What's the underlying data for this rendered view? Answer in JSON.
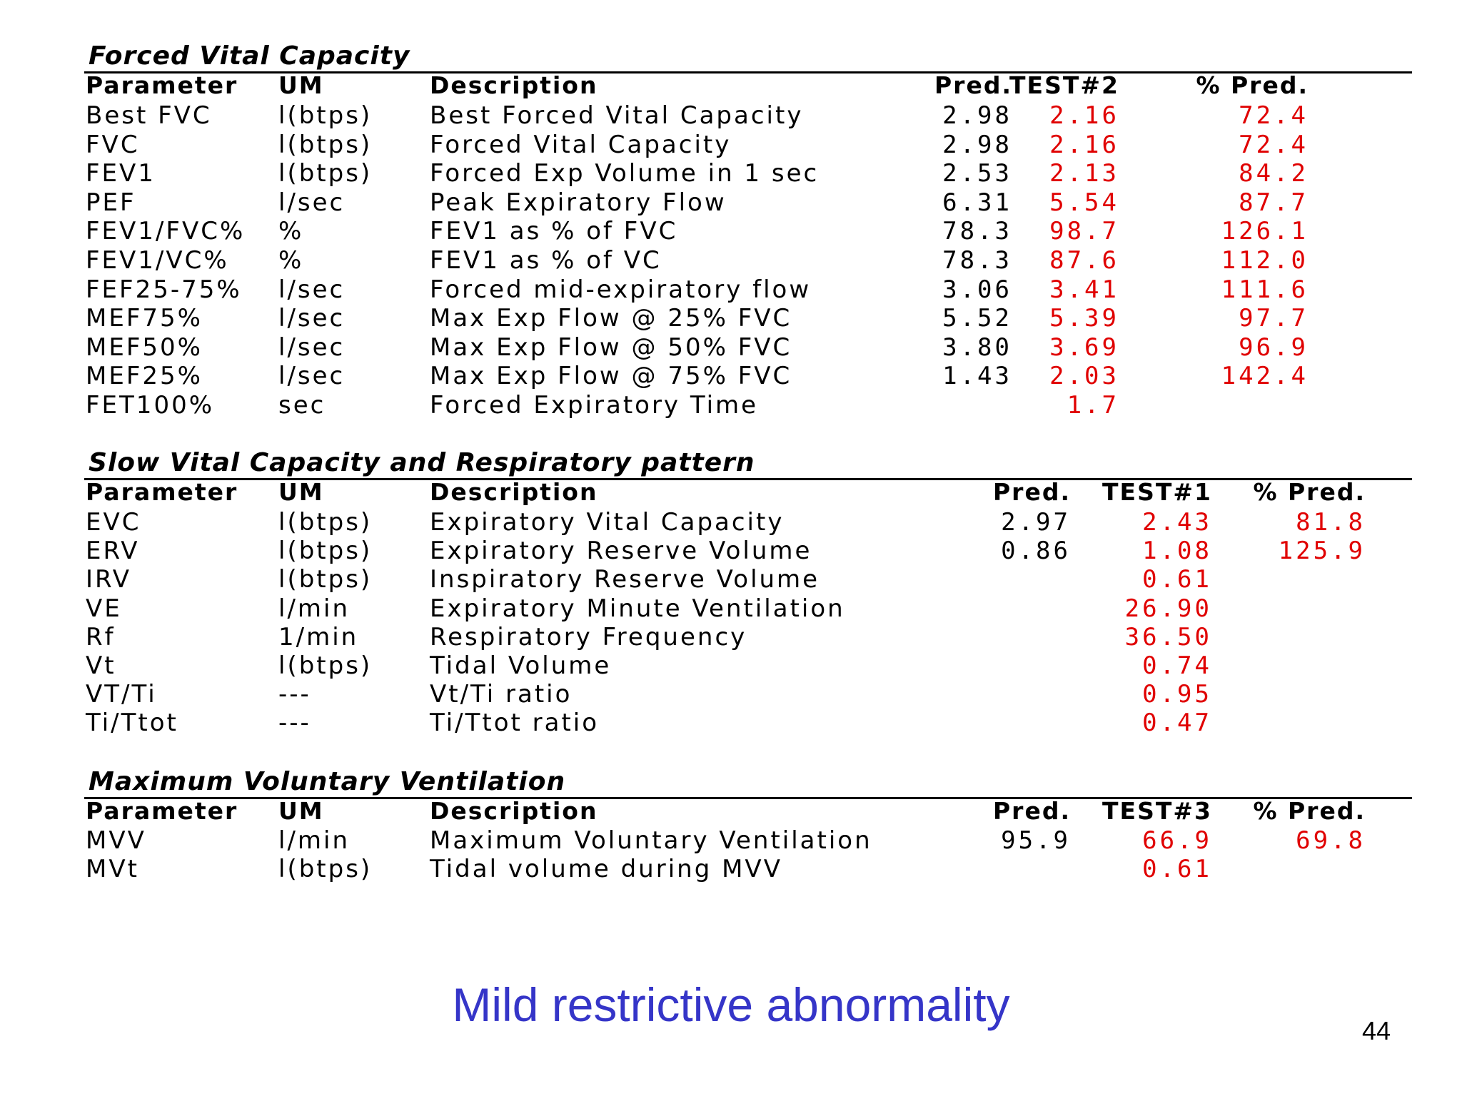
{
  "sections": [
    {
      "title": "Forced Vital Capacity",
      "headers": {
        "parameter": "Parameter",
        "um": "UM",
        "description": "Description",
        "pred": "Pred.",
        "test": "TEST#2",
        "pct": "% Pred."
      },
      "rows": [
        {
          "parameter": "Best FVC",
          "um": "l(btps)",
          "description": "Best Forced Vital Capacity",
          "pred": "2.98",
          "test": "2.16",
          "pct": "72.4"
        },
        {
          "parameter": "FVC",
          "um": "l(btps)",
          "description": "Forced Vital Capacity",
          "pred": "2.98",
          "test": "2.16",
          "pct": "72.4"
        },
        {
          "parameter": "FEV1",
          "um": "l(btps)",
          "description": "Forced Exp Volume in 1 sec",
          "pred": "2.53",
          "test": "2.13",
          "pct": "84.2"
        },
        {
          "parameter": "PEF",
          "um": "l/sec",
          "description": "Peak Expiratory Flow",
          "pred": "6.31",
          "test": "5.54",
          "pct": "87.7"
        },
        {
          "parameter": "FEV1/FVC%",
          "um": "%",
          "description": "FEV1 as % of FVC",
          "pred": "78.3",
          "test": "98.7",
          "pct": "126.1"
        },
        {
          "parameter": "FEV1/VC%",
          "um": "%",
          "description": "FEV1 as % of VC",
          "pred": "78.3",
          "test": "87.6",
          "pct": "112.0"
        },
        {
          "parameter": "FEF25-75%",
          "um": "l/sec",
          "description": "Forced mid-expiratory flow",
          "pred": "3.06",
          "test": "3.41",
          "pct": "111.6"
        },
        {
          "parameter": "MEF75%",
          "um": "l/sec",
          "description": "Max Exp Flow @ 25% FVC",
          "pred": "5.52",
          "test": "5.39",
          "pct": "97.7"
        },
        {
          "parameter": "MEF50%",
          "um": "l/sec",
          "description": "Max Exp Flow @ 50% FVC",
          "pred": "3.80",
          "test": "3.69",
          "pct": "96.9"
        },
        {
          "parameter": "MEF25%",
          "um": "l/sec",
          "description": "Max Exp Flow @ 75% FVC",
          "pred": "1.43",
          "test": "2.03",
          "pct": "142.4"
        },
        {
          "parameter": "FET100%",
          "um": "sec",
          "description": "Forced Expiratory Time",
          "pred": "",
          "test": "1.7",
          "pct": ""
        }
      ]
    },
    {
      "title": "Slow Vital Capacity and Respiratory pattern",
      "headers": {
        "parameter": "Parameter",
        "um": "UM",
        "description": "Description",
        "pred": "Pred.",
        "test": "TEST#1",
        "pct": "% Pred."
      },
      "rows": [
        {
          "parameter": "EVC",
          "um": "l(btps)",
          "description": "Expiratory Vital Capacity",
          "pred": "2.97",
          "test": "2.43",
          "pct": "81.8"
        },
        {
          "parameter": "ERV",
          "um": "l(btps)",
          "description": "Expiratory Reserve Volume",
          "pred": "0.86",
          "test": "1.08",
          "pct": "125.9"
        },
        {
          "parameter": "IRV",
          "um": "l(btps)",
          "description": "Inspiratory Reserve Volume",
          "pred": "",
          "test": "0.61",
          "pct": ""
        },
        {
          "parameter": "VE",
          "um": "l/min",
          "description": "Expiratory Minute Ventilation",
          "pred": "",
          "test": "26.90",
          "pct": ""
        },
        {
          "parameter": "Rf",
          "um": "1/min",
          "description": "Respiratory Frequency",
          "pred": "",
          "test": "36.50",
          "pct": ""
        },
        {
          "parameter": "Vt",
          "um": "l(btps)",
          "description": "Tidal Volume",
          "pred": "",
          "test": "0.74",
          "pct": ""
        },
        {
          "parameter": "VT/Ti",
          "um": "---",
          "description": "Vt/Ti ratio",
          "pred": "",
          "test": "0.95",
          "pct": ""
        },
        {
          "parameter": "Ti/Ttot",
          "um": "---",
          "description": "Ti/Ttot ratio",
          "pred": "",
          "test": "0.47",
          "pct": ""
        }
      ]
    },
    {
      "title": "Maximum Voluntary Ventilation",
      "headers": {
        "parameter": "Parameter",
        "um": "UM",
        "description": "Description",
        "pred": "Pred.",
        "test": "TEST#3",
        "pct": "% Pred."
      },
      "rows": [
        {
          "parameter": "MVV",
          "um": "l/min",
          "description": "Maximum Voluntary Ventilation",
          "pred": "95.9",
          "test": "66.9",
          "pct": "69.8"
        },
        {
          "parameter": "MVt",
          "um": "l(btps)",
          "description": "Tidal volume during MVV",
          "pred": "",
          "test": "0.61",
          "pct": ""
        }
      ]
    }
  ],
  "footer": {
    "text": "Mild restrictive abnormality",
    "page_number": "44"
  },
  "colors": {
    "test_values": "#e00000",
    "footer_text": "#3535c8"
  }
}
